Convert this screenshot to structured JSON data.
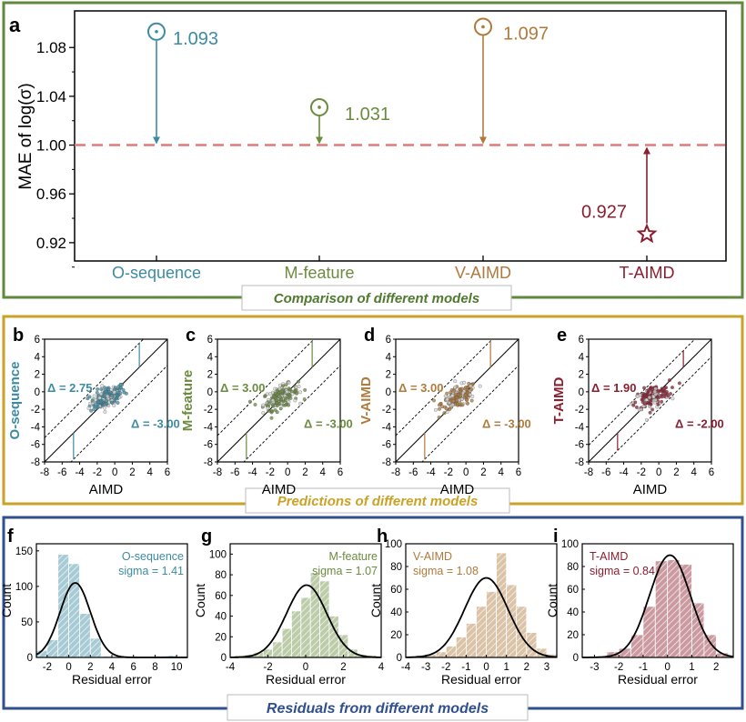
{
  "colors": {
    "o_sequence": "#3c8ba3",
    "m_feature": "#6b8b3f",
    "v_aimd": "#b07a3c",
    "t_aimd": "#8b1e2f",
    "panel_a_frame": "#5f8a3d",
    "panel_bcde_frame": "#c9a227",
    "panel_fghi_frame": "#2f4f8f",
    "dashed_ref": "#e07a7a",
    "caption_a": "#4f7a2f",
    "caption_b": "#c9a227",
    "caption_c": "#2f4f8f"
  },
  "panels": {
    "a": {
      "letter": "a",
      "caption": "Comparison of different models"
    },
    "bcde": {
      "caption": "Predictions of different models"
    },
    "fghi": {
      "caption": "Residuals from different models"
    }
  },
  "chart_data": [
    {
      "id": "a",
      "type": "scatter",
      "ylabel": "MAE of log(σ)",
      "ylim": [
        0.905,
        1.11
      ],
      "yticks": [
        "0.92",
        "0.96",
        "1.00",
        "1.04",
        "1.08"
      ],
      "categories": [
        "O-sequence",
        "M-feature",
        "V-AIMD",
        "T-AIMD"
      ],
      "values": [
        1.093,
        1.031,
        1.097,
        0.927
      ],
      "value_labels": [
        "1.093",
        "1.031",
        "1.097",
        "0.927"
      ],
      "reference_line": 1.0,
      "markers": [
        "dot-circle",
        "dot-circle",
        "dot-circle",
        "star"
      ]
    },
    {
      "id": "b",
      "type": "scatter",
      "letter": "b",
      "xlabel": "AIMD",
      "ylabel": "O-sequence",
      "xlim": [
        -8,
        6
      ],
      "ylim": [
        -8,
        6
      ],
      "xticks": [
        "-8",
        "-6",
        "-4",
        "-2",
        "0",
        "2",
        "4",
        "6"
      ],
      "yticks": [
        "-8",
        "-6",
        "-4",
        "-2",
        "0",
        "2",
        "4",
        "6"
      ],
      "band_upper": 2.75,
      "band_lower": -3.0,
      "band_upper_label": "Δ = 2.75",
      "band_lower_label": "Δ = -3.00"
    },
    {
      "id": "c",
      "type": "scatter",
      "letter": "c",
      "xlabel": "AIMD",
      "ylabel": "M-feature",
      "xlim": [
        -8,
        6
      ],
      "ylim": [
        -8,
        6
      ],
      "xticks": [
        "-8",
        "-6",
        "-4",
        "-2",
        "0",
        "2",
        "4",
        "6"
      ],
      "yticks": [
        "-8",
        "-6",
        "-4",
        "-2",
        "0",
        "2",
        "4",
        "6"
      ],
      "band_upper": 3.0,
      "band_lower": -3.0,
      "band_upper_label": "Δ = 3.00",
      "band_lower_label": "Δ = -3.00"
    },
    {
      "id": "d",
      "type": "scatter",
      "letter": "d",
      "xlabel": "AIMD",
      "ylabel": "V-AIMD",
      "xlim": [
        -8,
        6
      ],
      "ylim": [
        -8,
        6
      ],
      "xticks": [
        "-8",
        "-6",
        "-4",
        "-2",
        "0",
        "2",
        "4",
        "6"
      ],
      "yticks": [
        "-8",
        "-6",
        "-4",
        "-2",
        "0",
        "2",
        "4",
        "6"
      ],
      "band_upper": 3.0,
      "band_lower": -3.0,
      "band_upper_label": "Δ = 3.00",
      "band_lower_label": "Δ = -3.00"
    },
    {
      "id": "e",
      "type": "scatter",
      "letter": "e",
      "xlabel": "AIMD",
      "ylabel": "T-AIMD",
      "xlim": [
        -8,
        6
      ],
      "ylim": [
        -8,
        6
      ],
      "xticks": [
        "-8",
        "-6",
        "-4",
        "-2",
        "0",
        "2",
        "4",
        "6"
      ],
      "yticks": [
        "-8",
        "-6",
        "-4",
        "-2",
        "0",
        "2",
        "4",
        "6"
      ],
      "band_upper": 1.9,
      "band_lower": -2.0,
      "band_upper_label": "Δ = 1.90",
      "band_lower_label": "Δ = -2.00"
    },
    {
      "id": "f",
      "type": "bar",
      "letter": "f",
      "xlabel": "Residual error",
      "ylabel": "Count",
      "name_label": "O-sequence",
      "sigma_label": "sigma = 1.41",
      "xlim": [
        -3,
        11
      ],
      "ylim": [
        0,
        160
      ],
      "xticks": [
        "-2",
        "0",
        "2",
        "4",
        "6",
        "8",
        "10"
      ],
      "xtick_values": [
        -2,
        0,
        2,
        4,
        6,
        8,
        10
      ],
      "yticks": [
        "0",
        "50",
        "100",
        "150"
      ],
      "ytick_values": [
        0,
        50,
        100,
        150
      ],
      "bin_start": -3,
      "bin_width": 1,
      "values": [
        10,
        25,
        145,
        132,
        62,
        27,
        2,
        0,
        1,
        0,
        0,
        2,
        3,
        0
      ],
      "fit_mean": 0.6,
      "fit_sigma": 1.41,
      "fit_peak": 105
    },
    {
      "id": "g",
      "type": "bar",
      "letter": "g",
      "xlabel": "Residual error",
      "ylabel": "Count",
      "name_label": "M-feature",
      "sigma_label": "sigma = 1.07",
      "xlim": [
        -4,
        4
      ],
      "ylim": [
        0,
        110
      ],
      "xticks": [
        "-4",
        "-2",
        "0",
        "2",
        "4"
      ],
      "xtick_values": [
        -4,
        -2,
        0,
        2,
        4
      ],
      "yticks": [
        "0",
        "20",
        "40",
        "60",
        "80",
        "100"
      ],
      "ytick_values": [
        0,
        20,
        40,
        60,
        80,
        100
      ],
      "bin_start": -3.75,
      "bin_width": 0.5,
      "values": [
        2,
        3,
        5,
        8,
        15,
        28,
        45,
        58,
        82,
        74,
        40,
        22,
        8,
        3,
        2,
        1
      ],
      "fit_mean": 0.05,
      "fit_sigma": 1.07,
      "fit_peak": 70
    },
    {
      "id": "h",
      "type": "bar",
      "letter": "h",
      "xlabel": "Residual error",
      "ylabel": "Count",
      "name_label": "V-AIMD",
      "sigma_label": "sigma = 1.08",
      "xlim": [
        -4,
        3.5
      ],
      "ylim": [
        0,
        100
      ],
      "xticks": [
        "-4",
        "-3",
        "-2",
        "-1",
        "0",
        "1",
        "2",
        "3"
      ],
      "xtick_values": [
        -4,
        -3,
        -2,
        -1,
        0,
        1,
        2,
        3
      ],
      "yticks": [
        "0",
        "20",
        "40",
        "60",
        "80",
        "100"
      ],
      "ytick_values": [
        0,
        20,
        40,
        60,
        80,
        100
      ],
      "bin_start": -3.5,
      "bin_width": 0.5,
      "values": [
        2,
        3,
        5,
        10,
        18,
        30,
        45,
        58,
        92,
        64,
        45,
        22,
        8,
        3
      ],
      "fit_mean": 0.0,
      "fit_sigma": 1.08,
      "fit_peak": 70
    },
    {
      "id": "i",
      "type": "bar",
      "letter": "i",
      "xlabel": "Residual error",
      "ylabel": "Count",
      "name_label": "T-AIMD",
      "sigma_label": "sigma = 0.84",
      "xlim": [
        -3.5,
        2.7
      ],
      "ylim": [
        0,
        100
      ],
      "xticks": [
        "-3",
        "-2",
        "-1",
        "0",
        "1",
        "2"
      ],
      "xtick_values": [
        -3,
        -2,
        -1,
        0,
        1,
        2
      ],
      "yticks": [
        "0",
        "20",
        "40",
        "60",
        "80",
        "100"
      ],
      "ytick_values": [
        0,
        20,
        40,
        60,
        80,
        100
      ],
      "bin_start": -2.5,
      "bin_width": 0.5,
      "values": [
        5,
        8,
        20,
        45,
        85,
        86,
        82,
        48,
        20,
        4
      ],
      "fit_mean": 0.1,
      "fit_sigma": 0.84,
      "fit_peak": 90
    }
  ]
}
